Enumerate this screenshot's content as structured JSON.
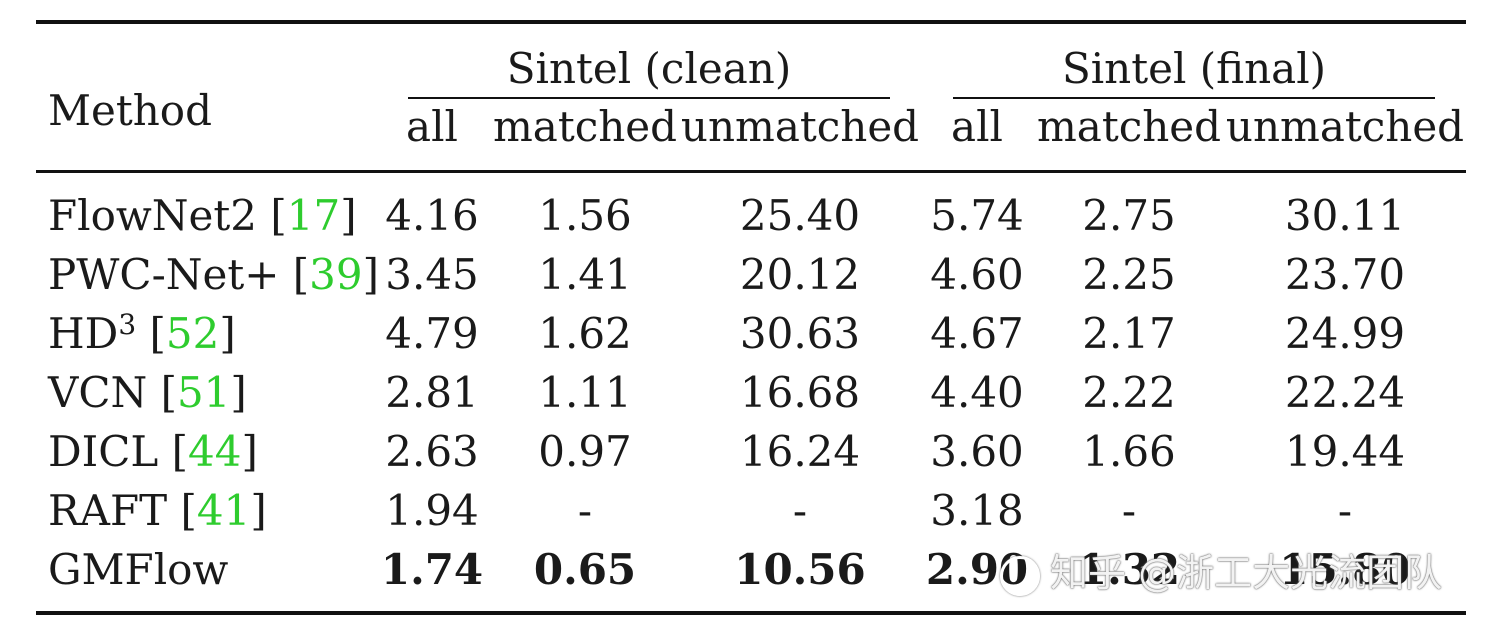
{
  "header": {
    "method": "Method",
    "groups": [
      "Sintel (clean)",
      "Sintel (final)"
    ],
    "subcols": [
      "all",
      "matched",
      "unmatched",
      "all",
      "matched",
      "unmatched"
    ]
  },
  "rows": [
    {
      "name": "FlowNet2 [",
      "sup": "",
      "cite": "17",
      "close": "]",
      "vals": [
        "4.16",
        "1.56",
        "25.40",
        "5.74",
        "2.75",
        "30.11"
      ],
      "bold": false
    },
    {
      "name": "PWC-Net+ [",
      "sup": "",
      "cite": "39",
      "close": "]",
      "vals": [
        "3.45",
        "1.41",
        "20.12",
        "4.60",
        "2.25",
        "23.70"
      ],
      "bold": false
    },
    {
      "name": "HD",
      "sup": "3",
      "cite": "52",
      "close": "]",
      "vals": [
        "4.79",
        "1.62",
        "30.63",
        "4.67",
        "2.17",
        "24.99"
      ],
      "bold": false
    },
    {
      "name": "VCN [",
      "sup": "",
      "cite": "51",
      "close": "]",
      "vals": [
        "2.81",
        "1.11",
        "16.68",
        "4.40",
        "2.22",
        "22.24"
      ],
      "bold": false
    },
    {
      "name": "DICL [",
      "sup": "",
      "cite": "44",
      "close": "]",
      "vals": [
        "2.63",
        "0.97",
        "16.24",
        "3.60",
        "1.66",
        "19.44"
      ],
      "bold": false
    },
    {
      "name": "RAFT [",
      "sup": "",
      "cite": "41",
      "close": "]",
      "vals": [
        "1.94",
        "-",
        "-",
        "3.18",
        "-",
        "-"
      ],
      "bold": false
    },
    {
      "name": "GMFlow",
      "sup": "",
      "cite": "",
      "close": "",
      "vals": [
        "1.74",
        "0.65",
        "10.56",
        "2.90",
        "1.32",
        "15.80"
      ],
      "bold": true
    }
  ],
  "watermark": "知乎 @浙工大光流团队",
  "colors": {
    "cite": "#2ecc2e",
    "rule": "#111111"
  }
}
